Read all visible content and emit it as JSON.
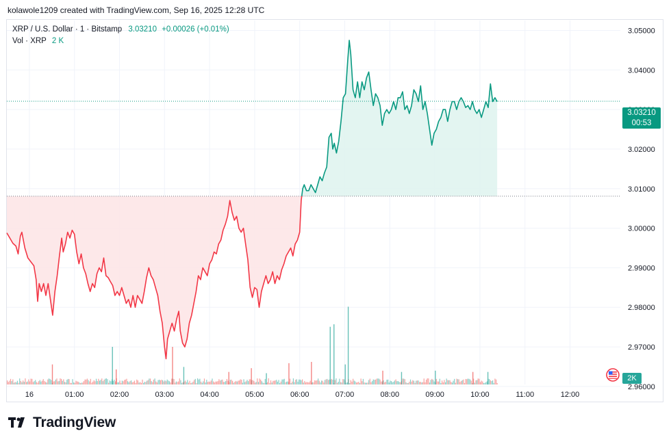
{
  "header": {
    "attribution": "kolawole1209 created with TradingView.com, Sep 16, 2025 12:28 UTC"
  },
  "legend": {
    "symbol": "XRP / U.S. Dollar · 1 · Bitstamp",
    "last": "3.03210",
    "change": "+0.00026 (+0.01%)",
    "vol_label": "Vol · XRP",
    "vol_value": "2 K"
  },
  "price_tag": {
    "price": "3.03210",
    "countdown": "00:53"
  },
  "vol_tag": {
    "value": "2K"
  },
  "footer": {
    "brand": "TradingView",
    "logo_mark": "TV"
  },
  "colors": {
    "up": "#089981",
    "down": "#f23645",
    "up_fill": "#e0f4ef",
    "down_fill": "#fde5e7",
    "grid": "#f0f3fa",
    "vol_up": "#26a69a",
    "vol_down": "#ef5350"
  },
  "chart_data": {
    "type": "area",
    "title": "XRP / U.S. Dollar · 1 · Bitstamp",
    "baseline": 3.0081,
    "last_price": 3.0321,
    "ylim": [
      2.9605,
      3.0525
    ],
    "y_ticks": [
      "3.05000",
      "3.04000",
      "3.03000",
      "3.02000",
      "3.01000",
      "3.00000",
      "2.99000",
      "2.98000",
      "2.97000",
      "2.96000"
    ],
    "y_tick_values": [
      3.05,
      3.04,
      3.03,
      3.02,
      3.01,
      3.0,
      2.99,
      2.98,
      2.97,
      2.96
    ],
    "x_ticks": [
      "16",
      "01:00",
      "02:00",
      "03:00",
      "04:00",
      "05:00",
      "06:00",
      "07:00",
      "08:00",
      "09:00",
      "10:00",
      "11:00",
      "12:00"
    ],
    "x_tick_minutes": [
      0,
      60,
      120,
      180,
      240,
      300,
      360,
      420,
      480,
      540,
      600,
      660,
      720
    ],
    "x_range_minutes": [
      -30,
      787
    ],
    "series": [
      {
        "name": "XRP/USD close",
        "points": [
          [
            -30,
            2.9988
          ],
          [
            -26,
            2.9975
          ],
          [
            -22,
            2.9962
          ],
          [
            -18,
            2.9955
          ],
          [
            -15,
            2.9935
          ],
          [
            -12,
            2.998
          ],
          [
            -10,
            2.999
          ],
          [
            -6,
            2.995
          ],
          [
            -2,
            2.9925
          ],
          [
            2,
            2.9915
          ],
          [
            6,
            2.9905
          ],
          [
            9,
            2.987
          ],
          [
            11,
            2.9815
          ],
          [
            13,
            2.986
          ],
          [
            16,
            2.984
          ],
          [
            19,
            2.986
          ],
          [
            22,
            2.983
          ],
          [
            25,
            2.986
          ],
          [
            28,
            2.982
          ],
          [
            31,
            2.978
          ],
          [
            34,
            2.984
          ],
          [
            37,
            2.988
          ],
          [
            40,
            2.993
          ],
          [
            43,
            2.9975
          ],
          [
            45,
            2.994
          ],
          [
            48,
            2.996
          ],
          [
            51,
            2.999
          ],
          [
            54,
            2.9975
          ],
          [
            57,
            2.9995
          ],
          [
            60,
            2.9985
          ],
          [
            63,
            2.994
          ],
          [
            66,
            2.991
          ],
          [
            69,
            2.9935
          ],
          [
            72,
            2.99
          ],
          [
            75,
            2.9885
          ],
          [
            78,
            2.986
          ],
          [
            81,
            2.984
          ],
          [
            84,
            2.986
          ],
          [
            87,
            2.985
          ],
          [
            90,
            2.9885
          ],
          [
            93,
            2.99
          ],
          [
            96,
            2.989
          ],
          [
            99,
            2.9925
          ],
          [
            102,
            2.988
          ],
          [
            105,
            2.9875
          ],
          [
            108,
            2.9865
          ],
          [
            111,
            2.9855
          ],
          [
            114,
            2.983
          ],
          [
            117,
            2.984
          ],
          [
            120,
            2.983
          ],
          [
            123,
            2.985
          ],
          [
            126,
            2.983
          ],
          [
            129,
            2.981
          ],
          [
            132,
            2.982
          ],
          [
            135,
            2.98
          ],
          [
            138,
            2.983
          ],
          [
            141,
            2.98
          ],
          [
            144,
            2.983
          ],
          [
            147,
            2.982
          ],
          [
            150,
            2.981
          ],
          [
            153,
            2.984
          ],
          [
            156,
            2.9875
          ],
          [
            159,
            2.99
          ],
          [
            162,
            2.988
          ],
          [
            165,
            2.987
          ],
          [
            168,
            2.985
          ],
          [
            171,
            2.983
          ],
          [
            174,
            2.979
          ],
          [
            177,
            2.976
          ],
          [
            180,
            2.97
          ],
          [
            182,
            2.967
          ],
          [
            184,
            2.972
          ],
          [
            187,
            2.974
          ],
          [
            190,
            2.976
          ],
          [
            193,
            2.974
          ],
          [
            196,
            2.977
          ],
          [
            199,
            2.979
          ],
          [
            201,
            2.974
          ],
          [
            204,
            2.971
          ],
          [
            207,
            2.97
          ],
          [
            210,
            2.972
          ],
          [
            213,
            2.976
          ],
          [
            216,
            2.978
          ],
          [
            219,
            2.981
          ],
          [
            222,
            2.984
          ],
          [
            225,
            2.988
          ],
          [
            228,
            2.987
          ],
          [
            231,
            2.99
          ],
          [
            234,
            2.989
          ],
          [
            237,
            2.988
          ],
          [
            240,
            2.991
          ],
          [
            243,
            2.992
          ],
          [
            246,
            2.994
          ],
          [
            249,
            2.9935
          ],
          [
            252,
            2.996
          ],
          [
            255,
            2.997
          ],
          [
            258,
            2.9995
          ],
          [
            261,
            3.001
          ],
          [
            264,
            3.003
          ],
          [
            267,
            3.007
          ],
          [
            270,
            3.004
          ],
          [
            273,
            3.002
          ],
          [
            276,
            3.003
          ],
          [
            279,
            3.0
          ],
          [
            282,
            2.999
          ],
          [
            285,
            3.0
          ],
          [
            288,
            2.996
          ],
          [
            291,
            2.992
          ],
          [
            294,
            2.985
          ],
          [
            297,
            2.9825
          ],
          [
            300,
            2.985
          ],
          [
            303,
            2.9845
          ],
          [
            306,
            2.98
          ],
          [
            309,
            2.984
          ],
          [
            312,
            2.986
          ],
          [
            315,
            2.988
          ],
          [
            318,
            2.986
          ],
          [
            321,
            2.987
          ],
          [
            324,
            2.989
          ],
          [
            327,
            2.986
          ],
          [
            330,
            2.988
          ],
          [
            333,
            2.987
          ],
          [
            336,
            2.9895
          ],
          [
            339,
            2.991
          ],
          [
            342,
            2.993
          ],
          [
            345,
            2.994
          ],
          [
            348,
            2.995
          ],
          [
            351,
            2.993
          ],
          [
            354,
            2.996
          ],
          [
            357,
            2.997
          ],
          [
            360,
            2.999
          ],
          [
            362,
            3.007
          ],
          [
            364,
            3.01
          ],
          [
            366,
            3.011
          ],
          [
            369,
            3.0095
          ],
          [
            372,
            3.0095
          ],
          [
            375,
            3.011
          ],
          [
            378,
            3.01
          ],
          [
            381,
            3.009
          ],
          [
            384,
            3.011
          ],
          [
            387,
            3.013
          ],
          [
            390,
            3.012
          ],
          [
            393,
            3.014
          ],
          [
            396,
            3.0155
          ],
          [
            399,
            3.023
          ],
          [
            402,
            3.024
          ],
          [
            404,
            3.02
          ],
          [
            406,
            3.0215
          ],
          [
            409,
            3.019
          ],
          [
            412,
            3.022
          ],
          [
            415,
            3.027
          ],
          [
            418,
            3.033
          ],
          [
            421,
            3.034
          ],
          [
            424,
            3.0425
          ],
          [
            426,
            3.0475
          ],
          [
            428,
            3.044
          ],
          [
            431,
            3.035
          ],
          [
            434,
            3.033
          ],
          [
            437,
            3.037
          ],
          [
            440,
            3.033
          ],
          [
            443,
            3.037
          ],
          [
            446,
            3.035
          ],
          [
            449,
            3.038
          ],
          [
            452,
            3.0395
          ],
          [
            455,
            3.035
          ],
          [
            458,
            3.031
          ],
          [
            461,
            3.034
          ],
          [
            464,
            3.033
          ],
          [
            467,
            3.031
          ],
          [
            470,
            3.026
          ],
          [
            473,
            3.029
          ],
          [
            476,
            3.03
          ],
          [
            479,
            3.029
          ],
          [
            482,
            3.03
          ],
          [
            485,
            3.032
          ],
          [
            488,
            3.03
          ],
          [
            491,
            3.033
          ],
          [
            494,
            3.033
          ],
          [
            497,
            3.0345
          ],
          [
            500,
            3.03
          ],
          [
            503,
            3.031
          ],
          [
            506,
            3.029
          ],
          [
            509,
            3.031
          ],
          [
            512,
            3.035
          ],
          [
            515,
            3.034
          ],
          [
            518,
            3.032
          ],
          [
            521,
            3.036
          ],
          [
            524,
            3.03
          ],
          [
            527,
            3.032
          ],
          [
            530,
            3.029
          ],
          [
            533,
            3.025
          ],
          [
            536,
            3.021
          ],
          [
            539,
            3.024
          ],
          [
            542,
            3.025
          ],
          [
            545,
            3.027
          ],
          [
            548,
            3.028
          ],
          [
            551,
            3.03
          ],
          [
            554,
            3.03
          ],
          [
            557,
            3.027
          ],
          [
            560,
            3.03
          ],
          [
            563,
            3.032
          ],
          [
            566,
            3.032
          ],
          [
            569,
            3.03
          ],
          [
            572,
            3.032
          ],
          [
            575,
            3.033
          ],
          [
            578,
            3.032
          ],
          [
            581,
            3.0305
          ],
          [
            584,
            3.031
          ],
          [
            587,
            3.03
          ],
          [
            590,
            3.032
          ],
          [
            593,
            3.03
          ],
          [
            596,
            3.029
          ],
          [
            599,
            3.03
          ],
          [
            602,
            3.028
          ],
          [
            605,
            3.03
          ],
          [
            608,
            3.032
          ],
          [
            611,
            3.0305
          ],
          [
            614,
            3.0365
          ],
          [
            617,
            3.032
          ],
          [
            620,
            3.033
          ],
          [
            623,
            3.032
          ]
        ]
      }
    ],
    "volume": {
      "ylim": [
        0,
        3000
      ],
      "spikes_up": [
        [
          110,
          1500
        ],
        [
          205,
          700
        ],
        [
          315,
          450
        ],
        [
          400,
          2300
        ],
        [
          405,
          2400
        ],
        [
          420,
          800
        ],
        [
          424,
          3100
        ],
        [
          495,
          500
        ],
        [
          540,
          550
        ],
        [
          610,
          500
        ]
      ],
      "spikes_down": [
        [
          30,
          800
        ],
        [
          115,
          600
        ],
        [
          190,
          1500
        ],
        [
          265,
          500
        ],
        [
          295,
          650
        ],
        [
          345,
          850
        ],
        [
          375,
          900
        ],
        [
          470,
          550
        ],
        [
          590,
          500
        ]
      ]
    }
  }
}
